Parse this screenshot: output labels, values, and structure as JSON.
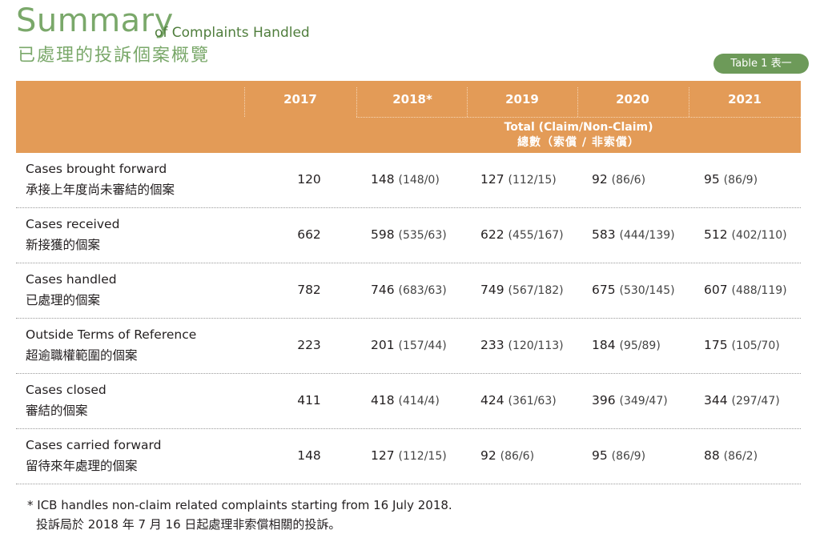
{
  "title": {
    "main": "Summary",
    "sub": "of Complaints Handled",
    "zh": "已處理的投訴個案概覽"
  },
  "badge": "Table 1 表一",
  "header": {
    "years": [
      "2017",
      "2018*",
      "2019",
      "2020",
      "2021"
    ],
    "total_en": "Total (Claim/Non-Claim)",
    "total_zh": "總數（索償 / 非索償）"
  },
  "rows": [
    {
      "en": "Cases brought forward",
      "zh": "承接上年度尚未審結的個案",
      "v2017": "120",
      "v2018": "148",
      "s2018": "(148/0)",
      "v2019": "127",
      "s2019": "(112/15)",
      "v2020": "92",
      "s2020": "(86/6)",
      "v2021": "95",
      "s2021": "(86/9)"
    },
    {
      "en": "Cases received",
      "zh": "新接獲的個案",
      "v2017": "662",
      "v2018": "598",
      "s2018": "(535/63)",
      "v2019": "622",
      "s2019": "(455/167)",
      "v2020": "583",
      "s2020": "(444/139)",
      "v2021": "512",
      "s2021": "(402/110)"
    },
    {
      "en": "Cases handled",
      "zh": "已處理的個案",
      "v2017": "782",
      "v2018": "746",
      "s2018": "(683/63)",
      "v2019": "749",
      "s2019": "(567/182)",
      "v2020": "675",
      "s2020": "(530/145)",
      "v2021": "607",
      "s2021": "(488/119)"
    },
    {
      "en": "Outside Terms of Reference",
      "zh": "超逾職權範圍的個案",
      "v2017": "223",
      "v2018": "201",
      "s2018": "(157/44)",
      "v2019": "233",
      "s2019": "(120/113)",
      "v2020": "184",
      "s2020": "(95/89)",
      "v2021": "175",
      "s2021": "(105/70)"
    },
    {
      "en": "Cases closed",
      "zh": "審結的個案",
      "v2017": "411",
      "v2018": "418",
      "s2018": "(414/4)",
      "v2019": "424",
      "s2019": "(361/63)",
      "v2020": "396",
      "s2020": "(349/47)",
      "v2021": "344",
      "s2021": "(297/47)"
    },
    {
      "en": "Cases carried forward",
      "zh": "留待來年處理的個案",
      "v2017": "148",
      "v2018": "127",
      "s2018": "(112/15)",
      "v2019": "92",
      "s2019": "(86/6)",
      "v2020": "95",
      "s2020": "(86/9)",
      "v2021": "88",
      "s2021": "(86/2)"
    }
  ],
  "footnote": {
    "en": "* ICB handles non-claim related complaints starting from 16 July 2018.",
    "zh": "投訴局於 2018 年 7 月 16 日起處理非索償相關的投訴。"
  },
  "colors": {
    "header": "#e39b57",
    "title": "#7aa86a",
    "badge": "#6d9a59"
  }
}
